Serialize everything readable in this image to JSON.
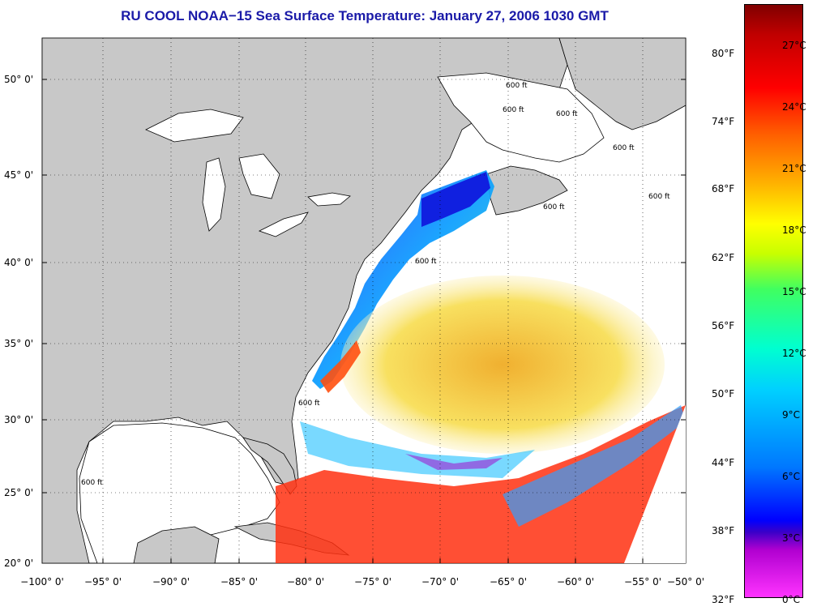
{
  "title": "RU COOL  NOAA−15  Sea Surface Temperature:  January 27, 2006 1030 GMT",
  "lat_labels": [
    "50° 0'",
    "45° 0'",
    "40° 0'",
    "35° 0'",
    "30° 0'",
    "25° 0'",
    "20° 0'"
  ],
  "lon_labels": [
    "−100° 0'",
    "−95° 0'",
    "−90° 0'",
    "−85° 0'",
    "−80° 0'",
    "−75° 0'",
    "−70° 0'",
    "−65° 0'",
    "−60° 0'",
    "−55° 0'",
    "−50° 0'"
  ],
  "isobath_labels": [
    "600 ft",
    "600 ft",
    "600 ft",
    "600 ft",
    "600 ft",
    "600 ft",
    "600 ft",
    "600 ft",
    "600 ft"
  ],
  "colorbar": {
    "fahrenheit": [
      "80°F",
      "74°F",
      "68°F",
      "62°F",
      "56°F",
      "50°F",
      "44°F",
      "38°F",
      "32°F"
    ],
    "celsius": [
      "27°C",
      "24°C",
      "21°C",
      "18°C",
      "15°C",
      "12°C",
      "9°C",
      "6°C",
      "3°C",
      "0°C"
    ]
  },
  "colors": {
    "land": "#c8c8c8",
    "water": "#ffffff",
    "title": "#1a1aa8",
    "cold": "#0000ff",
    "warm": "#ff2000"
  }
}
